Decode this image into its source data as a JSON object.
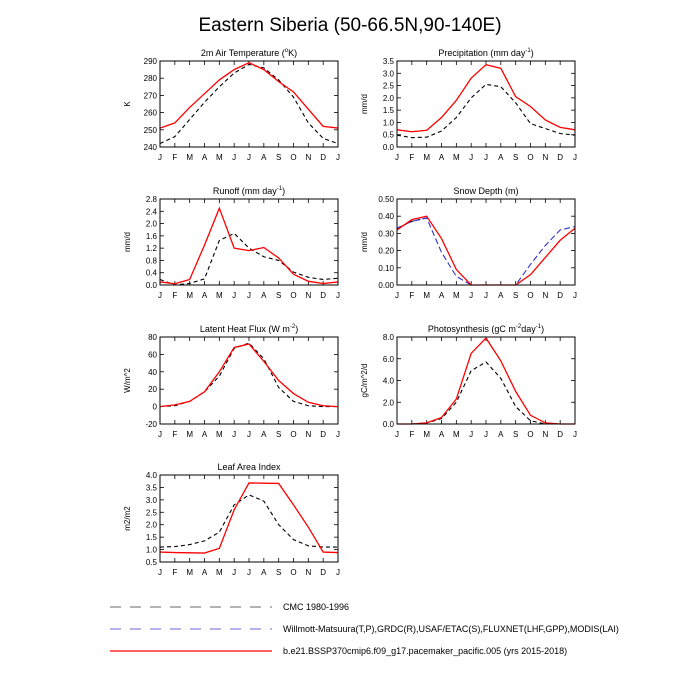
{
  "figure": {
    "title": "Eastern Siberia (50-66.5N,90-140E)"
  },
  "months": [
    "J",
    "F",
    "M",
    "A",
    "M",
    "J",
    "J",
    "A",
    "S",
    "O",
    "N",
    "D",
    "J"
  ],
  "legend": [
    {
      "label": "CMC 1980-1996",
      "color": "#888888",
      "dash": "long"
    },
    {
      "label": "Willmott-Matsuura(T,P),GRDC(R),USAF/ETAC(S),FLUXNET(LHF,GPP),MODIS(LAI)",
      "color": "#8888dd",
      "dash": "long"
    },
    {
      "label": "b.e21.BSSP370cmip6.f09_g17.pacemaker_pacific.005 (yrs 2015-2018)",
      "color": "#ff0000",
      "dash": "solid"
    }
  ],
  "chart_data": [
    {
      "type": "line",
      "title_parts": [
        "2m Air Temperature (",
        "o",
        "K)"
      ],
      "ylabel": "K",
      "ylim": [
        240,
        290
      ],
      "yticks": [
        240,
        250,
        260,
        270,
        280,
        290
      ],
      "ytick_labels": [
        "240",
        "250",
        "260",
        "270",
        "280",
        "290"
      ],
      "series": [
        {
          "role": "obs",
          "color": "#000000",
          "values": [
            242,
            246,
            256,
            266,
            275,
            283,
            288,
            286,
            279,
            269,
            254,
            245,
            242
          ]
        },
        {
          "role": "model",
          "color": "#ff0000",
          "values": [
            251,
            254,
            263,
            271,
            279,
            285,
            289,
            285,
            278,
            272,
            262,
            252,
            251
          ]
        }
      ]
    },
    {
      "type": "line",
      "title_parts": [
        "Precipitation (mm day",
        "-1",
        ")"
      ],
      "ylabel": "mm/d",
      "ylim": [
        0,
        3.5
      ],
      "yticks": [
        0,
        0.5,
        1,
        1.5,
        2,
        2.5,
        3,
        3.5
      ],
      "ytick_labels": [
        "0.0",
        "0.5",
        "1.0",
        "1.5",
        "2.0",
        "2.5",
        "3.0",
        "3.5"
      ],
      "series": [
        {
          "role": "obs",
          "color": "#000000",
          "values": [
            0.48,
            0.38,
            0.4,
            0.65,
            1.2,
            2.0,
            2.55,
            2.45,
            1.8,
            0.95,
            0.75,
            0.55,
            0.48
          ]
        },
        {
          "role": "model",
          "color": "#ff0000",
          "values": [
            0.7,
            0.62,
            0.68,
            1.2,
            1.9,
            2.8,
            3.35,
            3.2,
            2.05,
            1.65,
            1.1,
            0.8,
            0.7
          ]
        }
      ]
    },
    {
      "type": "line",
      "title_parts": [
        "Runoff (mm day",
        "-1",
        ")"
      ],
      "ylabel": "mm/d",
      "ylim": [
        0,
        2.8
      ],
      "yticks": [
        0,
        0.4,
        0.8,
        1.2,
        1.6,
        2.0,
        2.4,
        2.8
      ],
      "ytick_labels": [
        "0.0",
        "0.4",
        "0.8",
        "1.2",
        "1.6",
        "2.0",
        "2.4",
        "2.8"
      ],
      "series": [
        {
          "role": "obs",
          "color": "#000000",
          "values": [
            0.18,
            0.0,
            0.05,
            0.2,
            1.45,
            1.68,
            1.2,
            0.92,
            0.8,
            0.42,
            0.25,
            0.18,
            0.22
          ]
        },
        {
          "role": "model",
          "color": "#ff0000",
          "values": [
            0.1,
            0.04,
            0.18,
            1.3,
            2.5,
            1.2,
            1.12,
            1.22,
            0.88,
            0.35,
            0.12,
            0.05,
            0.1
          ]
        }
      ]
    },
    {
      "type": "line",
      "title_parts": [
        "Snow Depth (m)"
      ],
      "ylabel": "mm/d",
      "ylim": [
        0,
        0.5
      ],
      "yticks": [
        0,
        0.1,
        0.2,
        0.3,
        0.4,
        0.5
      ],
      "ytick_labels": [
        "0.00",
        "0.10",
        "0.20",
        "0.30",
        "0.40",
        "0.50"
      ],
      "series": [
        {
          "role": "obs",
          "color": "#000000",
          "values": [
            0.33,
            0.37,
            0.39,
            null,
            null,
            null,
            null,
            null,
            null,
            null,
            null,
            null,
            null
          ]
        },
        {
          "role": "obs2",
          "color": "#3333cc",
          "values": [
            0.33,
            0.37,
            0.39,
            0.19,
            0.05,
            0.0,
            0.0,
            0.0,
            0.0,
            0.12,
            0.23,
            0.32,
            0.34
          ]
        },
        {
          "role": "model",
          "color": "#ff0000",
          "values": [
            0.32,
            0.38,
            0.4,
            0.27,
            0.09,
            0.0,
            0.0,
            0.0,
            0.0,
            0.06,
            0.16,
            0.26,
            0.33
          ]
        }
      ]
    },
    {
      "type": "line",
      "title_parts": [
        "Latent Heat Flux (W m",
        "-2",
        ")"
      ],
      "ylabel": "W/m^2",
      "ylim": [
        -20,
        80
      ],
      "yticks": [
        -20,
        0,
        20,
        40,
        60,
        80
      ],
      "ytick_labels": [
        "-20",
        "0",
        "20",
        "40",
        "60",
        "80"
      ],
      "series": [
        {
          "role": "obs",
          "color": "#000000",
          "values": [
            0,
            1,
            6,
            17,
            35,
            67,
            73,
            55,
            22,
            6,
            1,
            0,
            0
          ]
        },
        {
          "role": "model",
          "color": "#ff0000",
          "values": [
            0,
            2,
            6,
            17,
            40,
            68,
            72,
            52,
            30,
            15,
            5,
            1,
            0
          ]
        }
      ]
    },
    {
      "type": "line",
      "title_parts": [
        "Photosynthesis (gC m",
        "-2",
        "day",
        "-1",
        ")"
      ],
      "ylabel": "gC/m^2/d",
      "ylim": [
        0,
        8
      ],
      "yticks": [
        0,
        2,
        4,
        6,
        8
      ],
      "ytick_labels": [
        "0.0",
        "2.0",
        "4.0",
        "6.0",
        "8.0"
      ],
      "series": [
        {
          "role": "obs",
          "color": "#000000",
          "values": [
            0,
            0,
            0.1,
            0.5,
            2.0,
            4.9,
            5.7,
            4.2,
            1.6,
            0.3,
            0,
            0,
            0
          ]
        },
        {
          "role": "model",
          "color": "#ff0000",
          "values": [
            0,
            0,
            0.1,
            0.6,
            2.3,
            6.5,
            7.9,
            5.8,
            3.0,
            0.8,
            0.1,
            0,
            0
          ]
        }
      ]
    },
    {
      "type": "line",
      "title_parts": [
        "Leaf Area Index"
      ],
      "ylabel": "m2/m2",
      "ylim": [
        0.5,
        4.0
      ],
      "yticks": [
        0.5,
        1.0,
        1.5,
        2.0,
        2.5,
        3.0,
        3.5,
        4.0
      ],
      "ytick_labels": [
        "0.5",
        "1.0",
        "1.5",
        "2.0",
        "2.5",
        "3.0",
        "3.5",
        "4.0"
      ],
      "series": [
        {
          "role": "obs",
          "color": "#000000",
          "values": [
            1.1,
            1.12,
            1.2,
            1.35,
            1.7,
            2.8,
            3.2,
            2.95,
            2.0,
            1.4,
            1.15,
            1.1,
            1.1
          ]
        },
        {
          "role": "model",
          "color": "#ff0000",
          "values": [
            0.9,
            0.88,
            0.87,
            0.86,
            1.05,
            2.6,
            3.68,
            3.67,
            3.66,
            2.8,
            1.9,
            0.9,
            0.88
          ]
        }
      ]
    }
  ]
}
